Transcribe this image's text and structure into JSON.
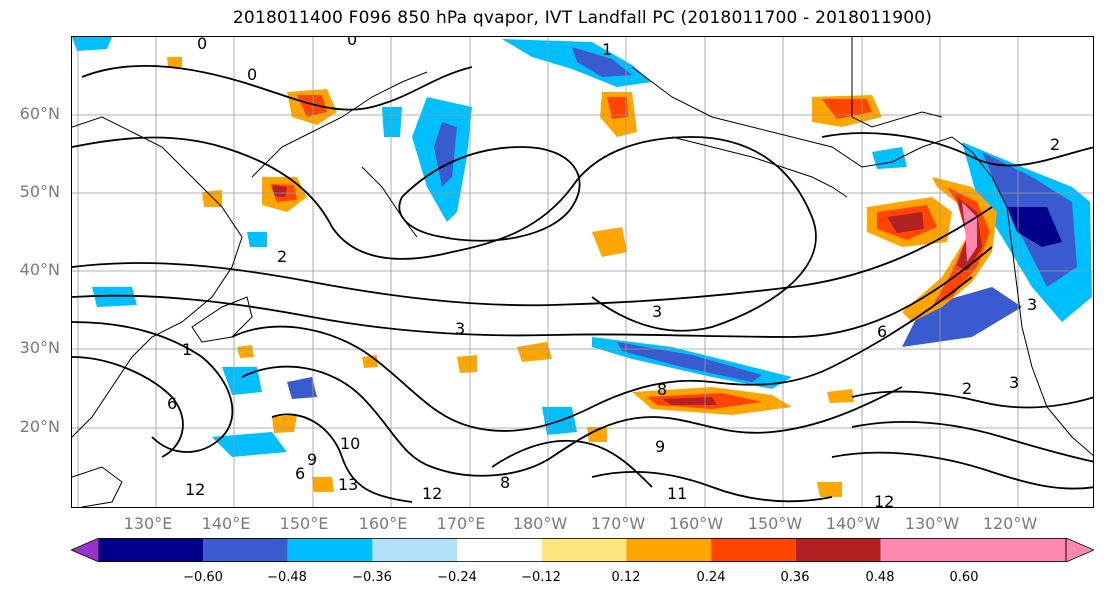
{
  "title": "2018011400 F096 850 hPa qvapor, IVT Landfall PC (2018011700 - 2018011900)",
  "map": {
    "lat_labels": [
      "60°N",
      "50°N",
      "40°N",
      "30°N",
      "20°N"
    ],
    "lon_labels": [
      "130°E",
      "140°E",
      "150°E",
      "160°E",
      "170°E",
      "180°W",
      "170°W",
      "160°W",
      "150°W",
      "140°W",
      "130°W",
      "120°W"
    ],
    "contour_labels": [
      "0",
      "0",
      "0",
      "1",
      "2",
      "2",
      "2",
      "3",
      "3",
      "3",
      "3",
      "1",
      "6",
      "6",
      "8",
      "9",
      "10",
      "12",
      "13",
      "12",
      "8",
      "9",
      "11",
      "12",
      "6"
    ]
  },
  "colorbar": {
    "ticks": [
      "−0.60",
      "−0.48",
      "−0.36",
      "−0.24",
      "−0.12",
      "0.12",
      "0.24",
      "0.36",
      "0.48",
      "0.60"
    ],
    "colors": [
      "#9932cc",
      "#00008b",
      "#3a5bcf",
      "#00bfff",
      "#b0e0fa",
      "#ffffff",
      "#ffe680",
      "#ffa500",
      "#ff4500",
      "#b22222",
      "#ff88b0",
      "#ff88b0"
    ]
  }
}
